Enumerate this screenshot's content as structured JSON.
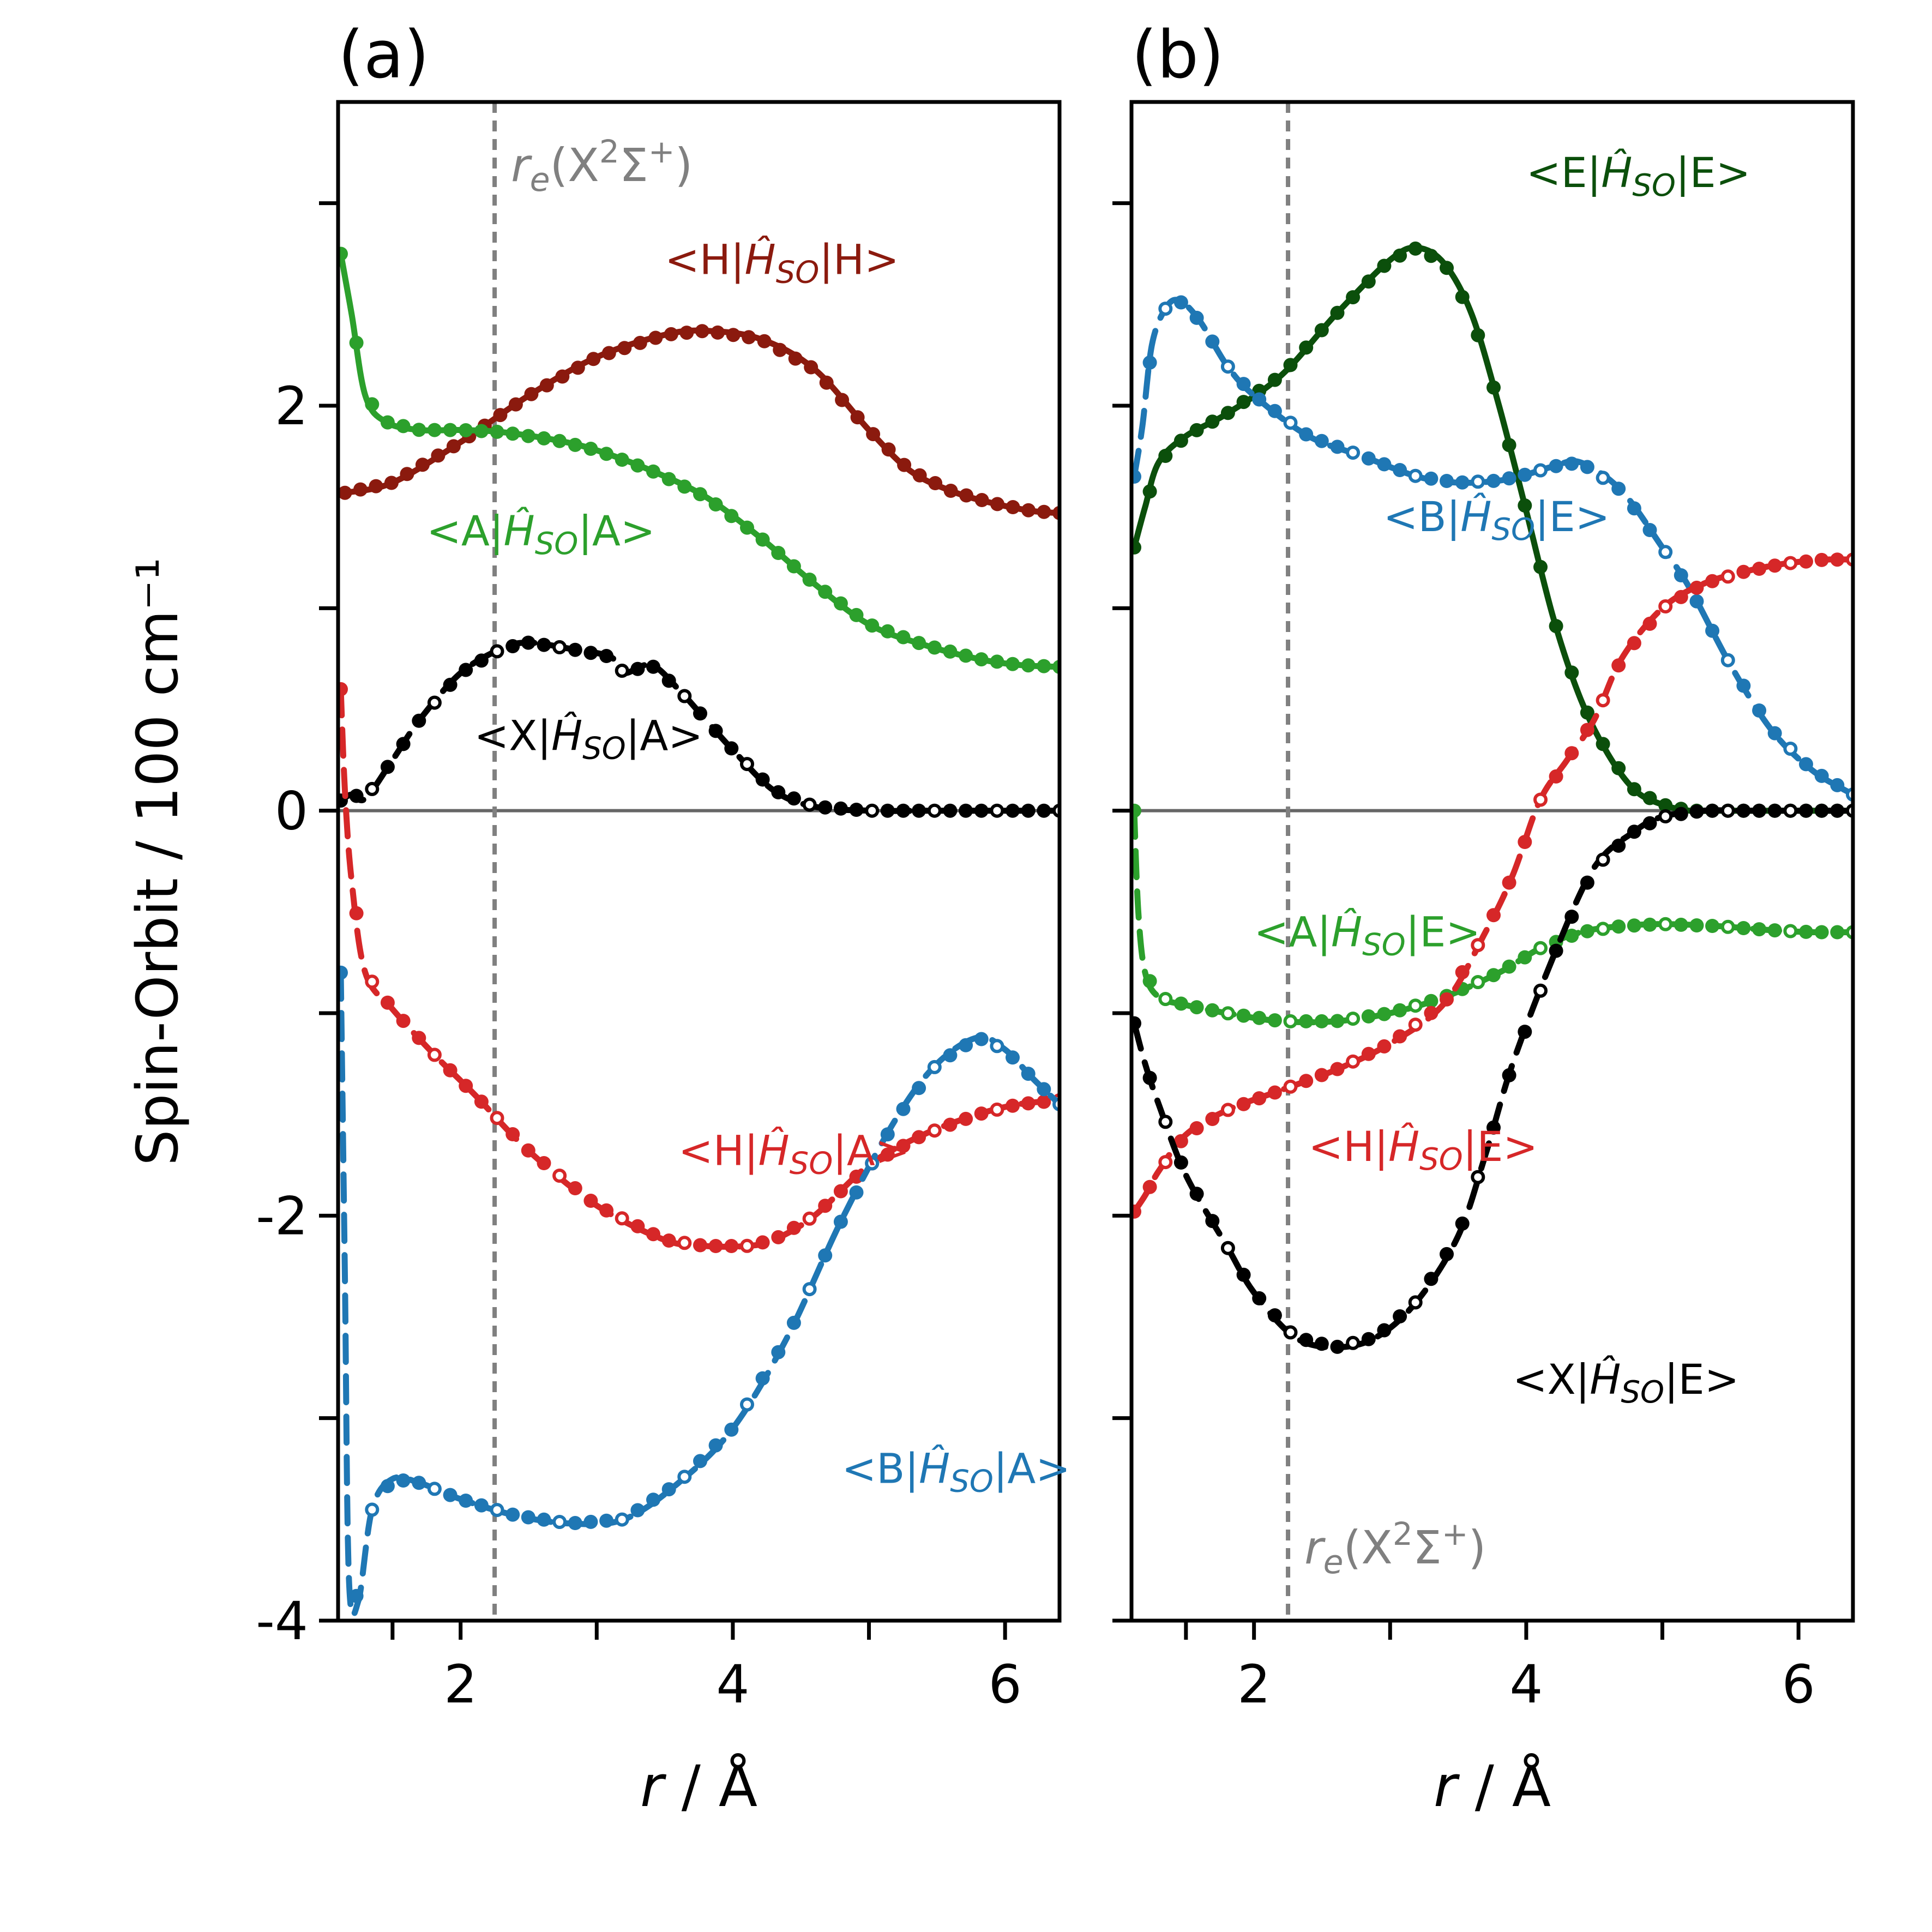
{
  "chart_data": {
    "type": "line",
    "ylabel": "Spin-Orbit / 100 cm⁻¹",
    "ylim": [
      -4.0,
      3.5
    ],
    "yticks": [
      -4,
      -3,
      -2,
      -1,
      0,
      1,
      2,
      3
    ],
    "ytick_labels": [
      "-4",
      "",
      "-2",
      "",
      "0",
      "",
      "2",
      ""
    ],
    "reference_line": {
      "x": 2.25,
      "style": "dashed",
      "color": "#808080",
      "label": "re(X²Σ⁺)"
    },
    "panels": [
      {
        "title": "(a)",
        "xlabel": "r / Å",
        "xlim": [
          1.1,
          6.4
        ],
        "xticks": [
          1.5,
          2,
          3,
          4,
          5,
          6
        ],
        "xtick_labels": [
          "",
          "2",
          "",
          "4",
          "",
          "6"
        ],
        "re_label_text": "re(X²Σ⁺)",
        "series": [
          {
            "name": "<H|ĤSO|H>",
            "label": "<H|ĤSO|H>",
            "color": "#8b1a0e",
            "style": "solid",
            "x": [
              1.15,
              1.5,
              2.0,
              2.5,
              3.0,
              3.5,
              3.8,
              4.2,
              4.6,
              5.0,
              5.3,
              5.6,
              5.9,
              6.2,
              6.4
            ],
            "y": [
              1.57,
              1.62,
              1.82,
              2.05,
              2.24,
              2.35,
              2.37,
              2.33,
              2.18,
              1.88,
              1.68,
              1.58,
              1.52,
              1.48,
              1.47
            ],
            "label_pos": [
              3.5,
              2.65
            ]
          },
          {
            "name": "<A|ĤSO|A>",
            "label": "<A|ĤSO|A>",
            "color": "#2ca02c",
            "style": "solid",
            "x": [
              1.12,
              1.2,
              1.3,
              1.45,
              1.7,
              2.0,
              2.3,
              2.7,
              3.0,
              3.4,
              3.8,
              4.2,
              4.6,
              5.0,
              5.4,
              5.8,
              6.1,
              6.4
            ],
            "y": [
              2.75,
              2.45,
              2.05,
              1.92,
              1.88,
              1.88,
              1.87,
              1.83,
              1.78,
              1.68,
              1.55,
              1.35,
              1.12,
              0.92,
              0.82,
              0.75,
              0.72,
              0.71
            ],
            "label_pos": [
              1.75,
              1.31
            ]
          },
          {
            "name": "<X|ĤSO|A>",
            "label": "<X|ĤSO|A>",
            "color": "#000000",
            "style": "mixed",
            "x": [
              1.12,
              1.2,
              1.3,
              1.5,
              1.7,
              2.0,
              2.3,
              2.5,
              2.8,
              3.1,
              3.2,
              3.4,
              3.6,
              3.8,
              4.0,
              4.3,
              4.6,
              5.0,
              5.5,
              6.0,
              6.4
            ],
            "y": [
              0.05,
              0.08,
              0.06,
              0.25,
              0.45,
              0.68,
              0.8,
              0.83,
              0.8,
              0.76,
              0.68,
              0.72,
              0.6,
              0.45,
              0.3,
              0.1,
              0.02,
              0.0,
              0.0,
              0.0,
              0.0
            ],
            "label_pos": [
              2.1,
              0.3
            ]
          },
          {
            "name": "<H|ĤSO|A>",
            "label": "<H|ĤSO|A>",
            "color": "#d62728",
            "style": "mixed",
            "x": [
              1.12,
              1.15,
              1.2,
              1.3,
              1.5,
              1.8,
              2.1,
              2.5,
              3.0,
              3.5,
              3.8,
              4.1,
              4.3,
              4.6,
              5.0,
              5.4,
              5.8,
              6.1,
              6.4
            ],
            "y": [
              0.6,
              0.1,
              -0.35,
              -0.8,
              -0.98,
              -1.2,
              -1.4,
              -1.68,
              -1.95,
              -2.12,
              -2.15,
              -2.15,
              -2.12,
              -2.0,
              -1.75,
              -1.6,
              -1.5,
              -1.45,
              -1.43
            ],
            "label_pos": [
              3.6,
              -1.75
            ]
          },
          {
            "name": "<B|ĤSO|A>",
            "label": "<B|ĤSO|A>",
            "color": "#1f77b4",
            "style": "mixed",
            "x": [
              1.12,
              1.15,
              1.18,
              1.25,
              1.35,
              1.5,
              1.7,
              2.0,
              2.4,
              2.8,
              3.2,
              3.6,
              4.0,
              4.4,
              4.8,
              5.2,
              5.5,
              5.8,
              6.0,
              6.2,
              6.4
            ],
            "y": [
              -0.8,
              -2.3,
              -3.8,
              -3.9,
              -3.45,
              -3.3,
              -3.32,
              -3.4,
              -3.48,
              -3.52,
              -3.5,
              -3.32,
              -3.05,
              -2.6,
              -2.02,
              -1.52,
              -1.25,
              -1.12,
              -1.18,
              -1.32,
              -1.45
            ],
            "label_pos": [
              4.8,
              -3.32
            ]
          }
        ]
      },
      {
        "title": "(b)",
        "xlabel": "r / Å",
        "xlim": [
          1.1,
          6.4
        ],
        "xticks": [
          1.5,
          2,
          3,
          4,
          5,
          6
        ],
        "xtick_labels": [
          "",
          "2",
          "",
          "4",
          "",
          "6"
        ],
        "re_label_text": "re(X²Σ⁺)",
        "series": [
          {
            "name": "<E|ĤSO|E>",
            "label": "<E|ĤSO|E>",
            "color": "#0b4f0b",
            "style": "solid",
            "x": [
              1.12,
              1.2,
              1.3,
              1.5,
              1.8,
              2.2,
              2.6,
              3.0,
              3.2,
              3.4,
              3.6,
              3.8,
              4.0,
              4.2,
              4.4,
              4.6,
              4.8,
              5.0,
              5.2,
              5.4,
              5.8,
              6.4
            ],
            "y": [
              1.3,
              1.5,
              1.72,
              1.85,
              1.96,
              2.15,
              2.45,
              2.72,
              2.78,
              2.7,
              2.45,
              2.0,
              1.48,
              0.95,
              0.55,
              0.28,
              0.1,
              0.03,
              0.0,
              0.0,
              0.0,
              0.0
            ],
            "label_pos": [
              4.0,
              3.08
            ]
          },
          {
            "name": "<B|ĤSO|E>",
            "label": "<B|ĤSO|E>",
            "color": "#1f77b4",
            "style": "mixed",
            "x": [
              1.12,
              1.18,
              1.25,
              1.35,
              1.45,
              1.6,
              1.8,
              2.0,
              2.4,
              2.8,
              3.2,
              3.5,
              3.8,
              4.0,
              4.2,
              4.4,
              4.7,
              5.0,
              5.2,
              5.5,
              5.8,
              6.1,
              6.4
            ],
            "y": [
              1.65,
              1.9,
              2.3,
              2.48,
              2.52,
              2.42,
              2.2,
              2.05,
              1.85,
              1.75,
              1.65,
              1.62,
              1.63,
              1.66,
              1.7,
              1.72,
              1.58,
              1.3,
              1.1,
              0.72,
              0.4,
              0.2,
              0.08
            ],
            "label_pos": [
              2.95,
              1.38
            ]
          },
          {
            "name": "<A|ĤSO|E>",
            "label": "<A|ĤSO|E>",
            "color": "#2ca02c",
            "style": "mixed",
            "x": [
              1.12,
              1.15,
              1.2,
              1.3,
              1.5,
              1.8,
              2.2,
              2.6,
              3.0,
              3.4,
              3.8,
              4.1,
              4.4,
              4.7,
              5.0,
              5.4,
              5.8,
              6.1,
              6.4
            ],
            "y": [
              0.0,
              -0.5,
              -0.8,
              -0.92,
              -0.96,
              -1.0,
              -1.04,
              -1.04,
              -1.0,
              -0.92,
              -0.8,
              -0.68,
              -0.6,
              -0.57,
              -0.56,
              -0.57,
              -0.59,
              -0.6,
              -0.6
            ],
            "label_pos": [
              2.0,
              -0.67
            ]
          },
          {
            "name": "<H|ĤSO|E>",
            "label": "<H|ĤSO|E>",
            "color": "#d62728",
            "style": "mixed",
            "x": [
              1.12,
              1.2,
              1.3,
              1.5,
              1.8,
              2.2,
              2.6,
              3.0,
              3.4,
              3.7,
              3.9,
              4.1,
              4.3,
              4.5,
              4.7,
              5.0,
              5.3,
              5.6,
              5.9,
              6.2,
              6.4
            ],
            "y": [
              -1.98,
              -1.9,
              -1.78,
              -1.6,
              -1.48,
              -1.38,
              -1.28,
              -1.15,
              -0.95,
              -0.6,
              -0.32,
              0.05,
              0.25,
              0.45,
              0.75,
              1.0,
              1.12,
              1.18,
              1.22,
              1.24,
              1.24
            ],
            "label_pos": [
              2.4,
              -1.73
            ]
          },
          {
            "name": "<X|ĤSO|E>",
            "label": "<X|ĤSO|E>",
            "color": "#000000",
            "style": "mixed",
            "x": [
              1.12,
              1.2,
              1.3,
              1.5,
              1.8,
              2.0,
              2.3,
              2.6,
              2.9,
              3.2,
              3.5,
              3.7,
              3.9,
              4.2,
              4.5,
              4.8,
              5.0,
              5.3,
              5.6,
              6.0,
              6.4
            ],
            "y": [
              -1.05,
              -1.25,
              -1.45,
              -1.8,
              -2.15,
              -2.38,
              -2.6,
              -2.65,
              -2.6,
              -2.42,
              -2.1,
              -1.7,
              -1.25,
              -0.72,
              -0.28,
              -0.1,
              -0.03,
              0.0,
              0.0,
              0.0,
              0.0
            ],
            "label_pos": [
              3.9,
              -2.88
            ]
          }
        ]
      }
    ]
  }
}
